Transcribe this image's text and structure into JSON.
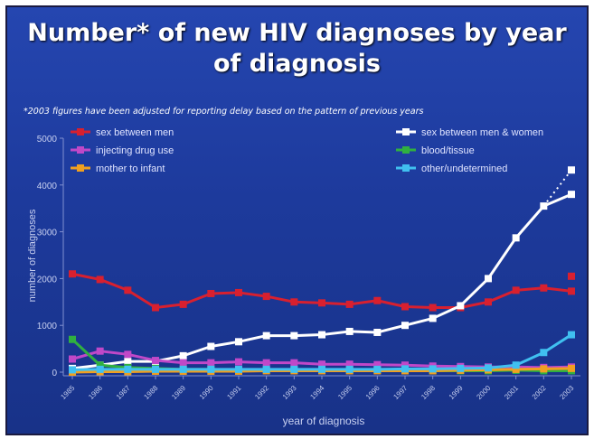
{
  "chart_data": {
    "type": "line",
    "title": "Number* of new HIV diagnoses by year of diagnosis",
    "subtitle": "*2003 figures have been adjusted for reporting delay based on the pattern of previous years",
    "y_label": "number of diagnoses",
    "x_label": "year of diagnosis",
    "x": [
      1985,
      1986,
      1987,
      1988,
      1989,
      1990,
      1991,
      1992,
      1993,
      1994,
      1995,
      1996,
      1997,
      1998,
      1999,
      2000,
      2001,
      2002,
      2003
    ],
    "xlim": [
      1985,
      2003
    ],
    "ylim": [
      0,
      5000
    ],
    "yticks": [
      0,
      1000,
      2000,
      3000,
      4000,
      5000
    ],
    "legend": "top",
    "series": [
      {
        "name": "sex between men",
        "color": "#d8202f",
        "values": [
          2100,
          1980,
          1750,
          1380,
          1450,
          1680,
          1700,
          1620,
          1500,
          1480,
          1450,
          1530,
          1400,
          1380,
          1380,
          1500,
          1750,
          1800,
          1730
        ],
        "adjusted": 2050
      },
      {
        "name": "sex between men & women",
        "color": "#ffffff",
        "values": [
          80,
          150,
          230,
          230,
          350,
          550,
          650,
          780,
          780,
          800,
          870,
          850,
          1000,
          1150,
          1420,
          2000,
          2870,
          3550,
          3800
        ],
        "adjusted": 4320
      },
      {
        "name": "injecting drug use",
        "color": "#c048c8",
        "values": [
          280,
          450,
          380,
          250,
          200,
          200,
          220,
          200,
          200,
          170,
          170,
          160,
          150,
          130,
          120,
          110,
          110,
          100,
          110
        ]
      },
      {
        "name": "blood/tissue",
        "color": "#30b040",
        "values": [
          700,
          150,
          100,
          80,
          60,
          60,
          50,
          40,
          40,
          40,
          40,
          40,
          30,
          30,
          30,
          30,
          40,
          30,
          30
        ]
      },
      {
        "name": "mother to infant",
        "color": "#f0a020",
        "values": [
          0,
          10,
          10,
          20,
          20,
          20,
          20,
          30,
          30,
          30,
          30,
          30,
          30,
          30,
          40,
          50,
          60,
          70,
          80
        ]
      },
      {
        "name": "other/undetermined",
        "color": "#40c0f0",
        "values": [
          50,
          60,
          60,
          60,
          60,
          60,
          60,
          60,
          60,
          60,
          60,
          60,
          70,
          70,
          80,
          90,
          150,
          420,
          800
        ]
      }
    ]
  }
}
